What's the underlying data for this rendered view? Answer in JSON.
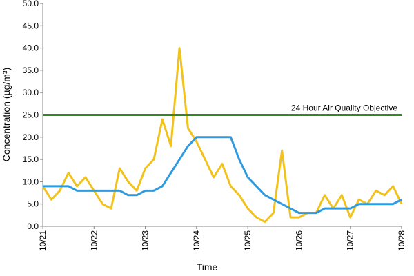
{
  "chart_data": {
    "type": "line",
    "x_label": "Time",
    "y_label": "Concentration (µg/m³)",
    "categories": [
      "10/21",
      null,
      null,
      null,
      null,
      null,
      "10/22",
      null,
      null,
      null,
      null,
      null,
      "10/23",
      null,
      null,
      null,
      null,
      null,
      "10/24",
      null,
      null,
      null,
      null,
      null,
      "10/25",
      null,
      null,
      null,
      null,
      null,
      "10/26",
      null,
      null,
      null,
      null,
      null,
      "10/27",
      null,
      null,
      null,
      null,
      null,
      "10/28"
    ],
    "series": [
      {
        "color": "#f2c21c",
        "values": [
          9,
          6,
          8,
          12,
          9,
          11,
          8,
          5,
          4,
          13,
          10,
          8,
          13,
          15,
          24,
          18,
          40,
          22,
          19,
          15,
          11,
          14,
          9,
          7,
          4,
          2,
          1,
          3,
          17,
          2,
          2,
          3,
          3,
          7,
          4,
          7,
          2,
          6,
          5,
          8,
          7,
          9,
          5
        ]
      },
      {
        "color": "#2e9be0",
        "values": [
          9,
          9,
          9,
          9,
          8,
          8,
          8,
          8,
          8,
          8,
          7,
          7,
          8,
          8,
          9,
          12,
          15,
          18,
          20,
          20,
          20,
          20,
          20,
          15,
          11,
          9,
          7,
          6,
          5,
          4,
          3,
          3,
          3,
          4,
          4,
          4,
          4,
          5,
          5,
          5,
          5,
          5,
          6
        ]
      }
    ],
    "objective": {
      "value": 25,
      "label": "24 Hour Air Quality Objective",
      "color": "#2e8b1e"
    },
    "ylim": [
      0,
      50
    ],
    "yticks": [
      {
        "value": 0,
        "label": "0.0"
      },
      {
        "value": 5,
        "label": "5.0"
      },
      {
        "value": 10,
        "label": "10.0"
      },
      {
        "value": 15,
        "label": "15.0"
      },
      {
        "value": 20,
        "label": "20.0"
      },
      {
        "value": 25,
        "label": "25.0"
      },
      {
        "value": 30,
        "label": "30.0"
      },
      {
        "value": 35,
        "label": "35.0"
      },
      {
        "value": 40,
        "label": "40.0"
      },
      {
        "value": 45,
        "label": "45.0"
      },
      {
        "value": 50,
        "label": "50.0"
      }
    ],
    "grid": false
  }
}
